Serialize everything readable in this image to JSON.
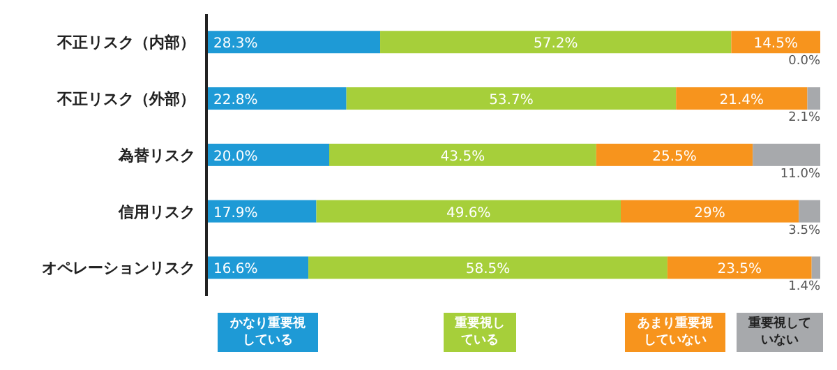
{
  "chart_data": {
    "type": "bar",
    "orientation": "horizontal",
    "stacked": true,
    "legend": "bottom",
    "grid": false,
    "categories": [
      "不正リスク（内部）",
      "不正リスク（外部）",
      "為替リスク",
      "信用リスク",
      "オペレーションリスク"
    ],
    "series": [
      {
        "name": "かなり重要視している",
        "color": "#1e9ad6",
        "values": [
          28.3,
          22.8,
          20.0,
          17.9,
          16.6
        ],
        "value_labels": [
          "28.3%",
          "22.8%",
          "20.0%",
          "17.9%",
          "16.6%"
        ]
      },
      {
        "name": "重要視している",
        "color": "#a6cf3a",
        "values": [
          57.2,
          53.7,
          43.5,
          49.6,
          58.5
        ],
        "value_labels": [
          "57.2%",
          "53.7%",
          "43.5%",
          "49.6%",
          "58.5%"
        ]
      },
      {
        "name": "あまり重要視していない",
        "color": "#f7941d",
        "values": [
          14.5,
          21.4,
          25.5,
          29,
          23.5
        ],
        "value_labels": [
          "14.5%",
          "21.4%",
          "25.5%",
          "29%",
          "23.5%"
        ]
      },
      {
        "name": "重要視していない",
        "color": "#a7a9ac",
        "values": [
          0.0,
          2.1,
          11.0,
          3.5,
          1.4
        ],
        "value_labels": [
          "0.0%",
          "2.1%",
          "11.0%",
          "3.5%",
          "1.4%"
        ]
      }
    ]
  }
}
